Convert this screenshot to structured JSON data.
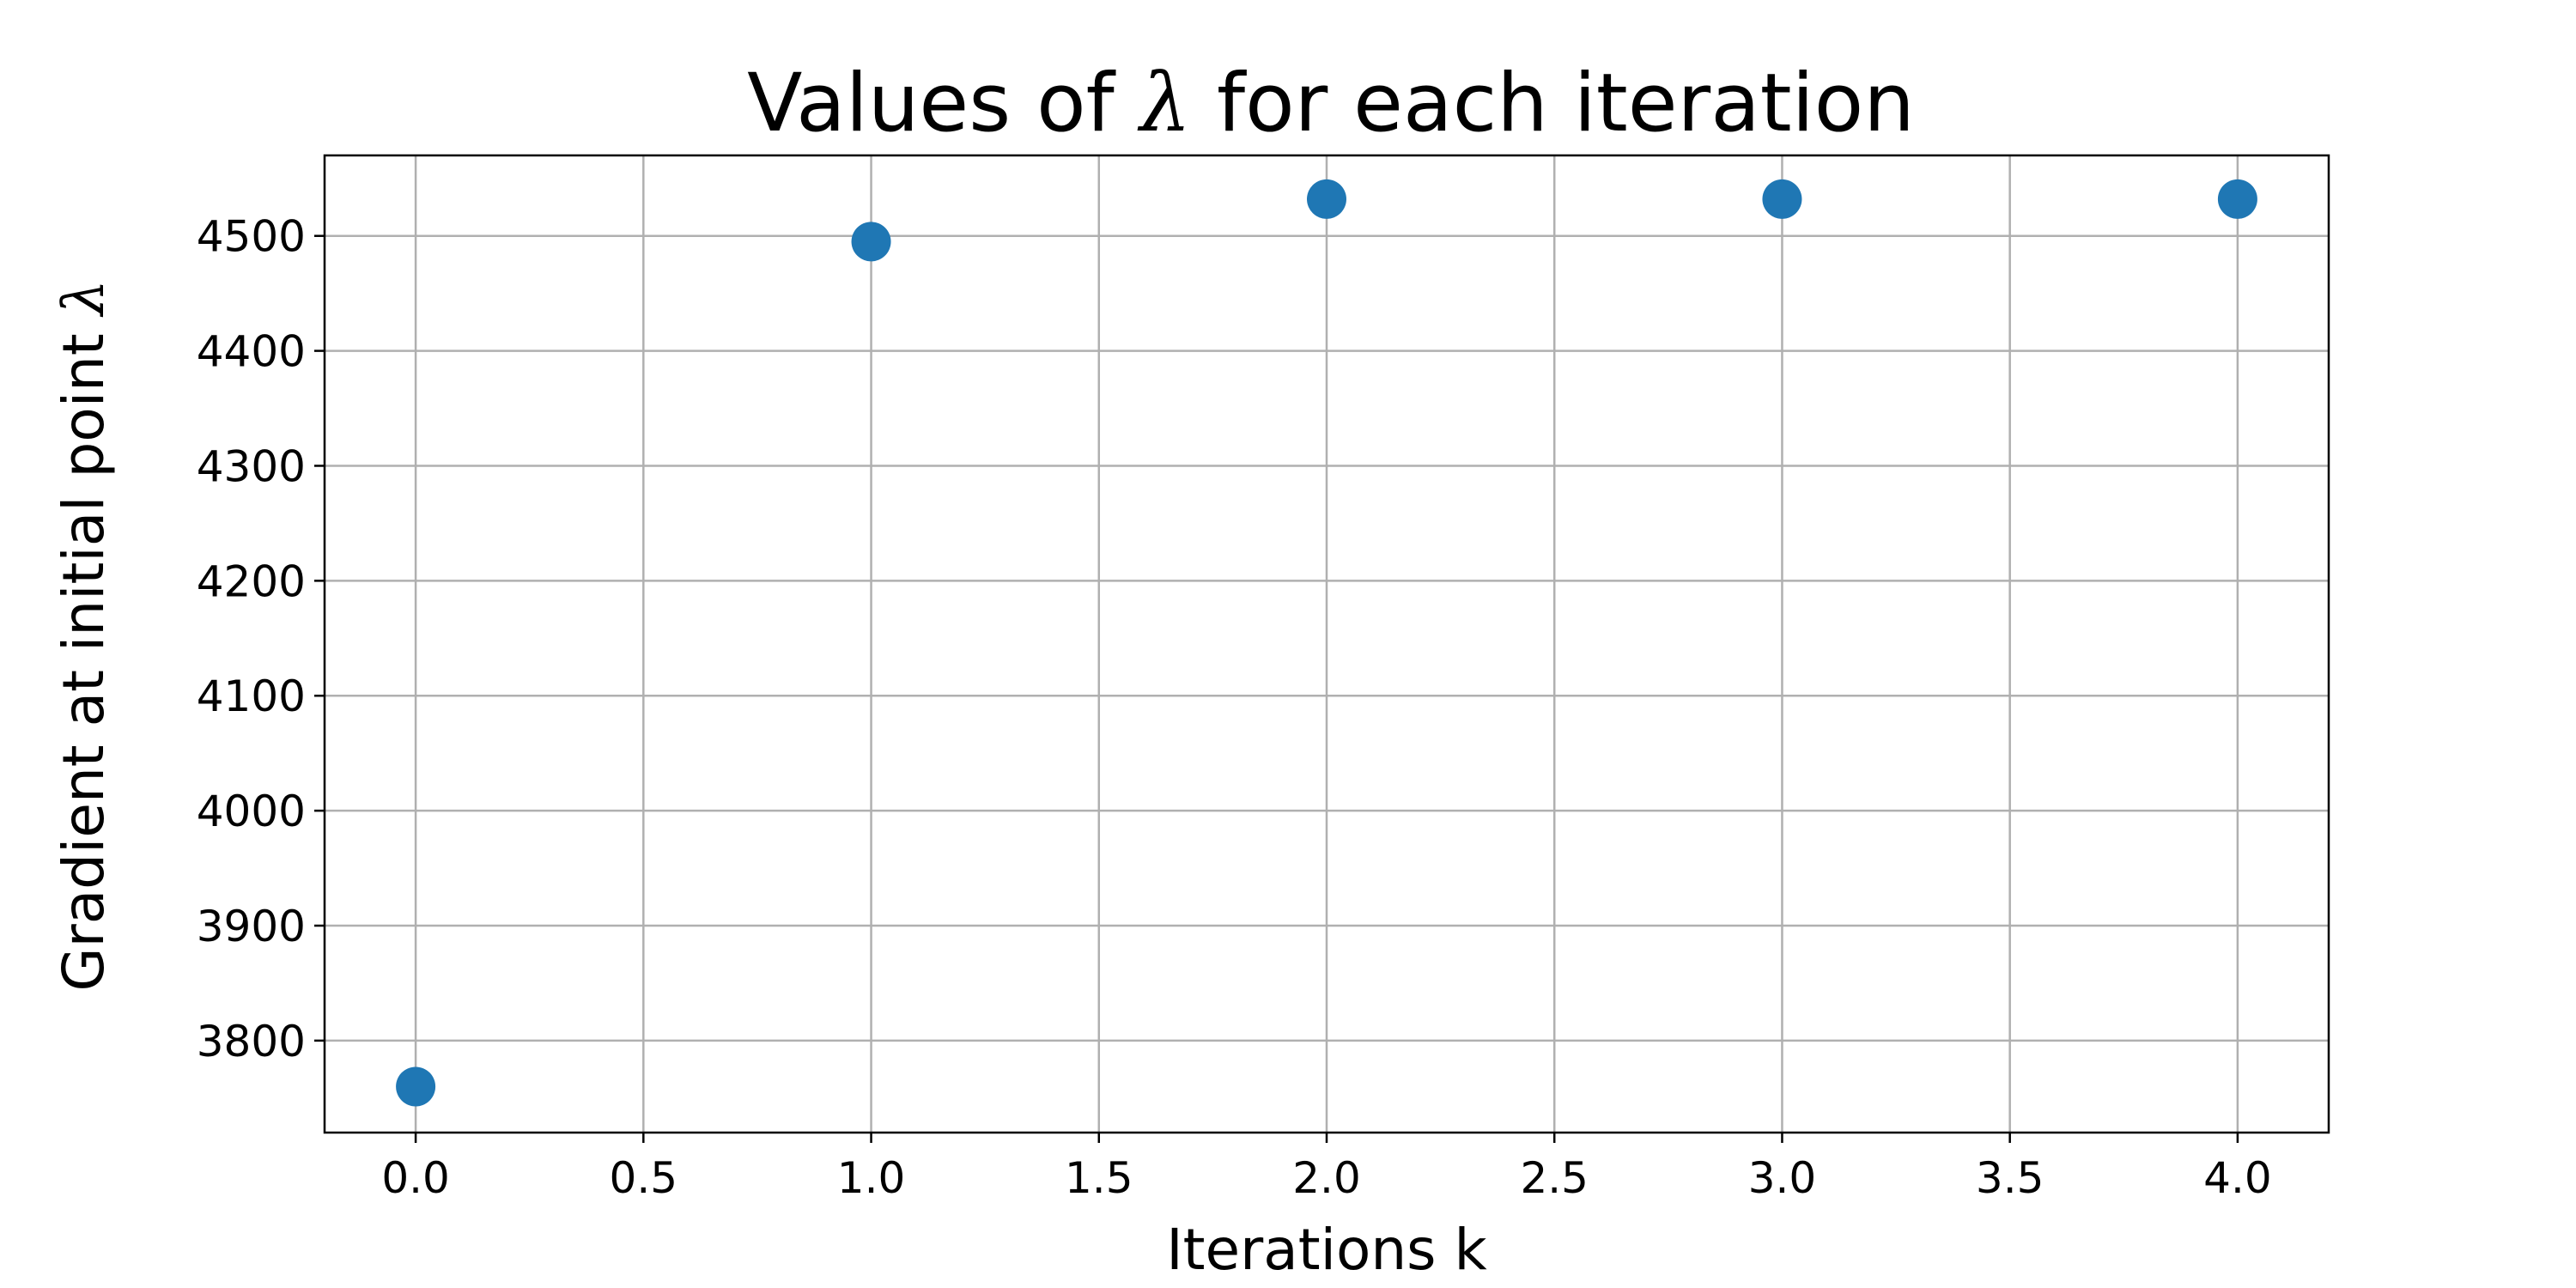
{
  "chart_data": {
    "type": "scatter",
    "title": {
      "prefix": "Values of ",
      "symbol": "λ",
      "suffix": " for each iteration"
    },
    "xlabel": "Iterations k",
    "ylabel": {
      "prefix": "Gradient at initial point ",
      "symbol": "λ"
    },
    "xlim": [
      -0.2,
      4.2
    ],
    "ylim": [
      3720,
      4570
    ],
    "xticks": [
      0.0,
      0.5,
      1.0,
      1.5,
      2.0,
      2.5,
      3.0,
      3.5,
      4.0
    ],
    "xtick_labels": [
      "0.0",
      "0.5",
      "1.0",
      "1.5",
      "2.0",
      "2.5",
      "3.0",
      "3.5",
      "4.0"
    ],
    "yticks": [
      3800,
      3900,
      4000,
      4100,
      4200,
      4300,
      4400,
      4500
    ],
    "ytick_labels": [
      "3800",
      "3900",
      "4000",
      "4100",
      "4200",
      "4300",
      "4400",
      "4500"
    ],
    "grid": true,
    "marker_color": "#1f77b4",
    "grid_color": "#b0b0b0",
    "points": [
      {
        "x": 0,
        "y": 3760
      },
      {
        "x": 1,
        "y": 4495
      },
      {
        "x": 2,
        "y": 4532
      },
      {
        "x": 3,
        "y": 4532
      },
      {
        "x": 4,
        "y": 4532
      }
    ]
  }
}
